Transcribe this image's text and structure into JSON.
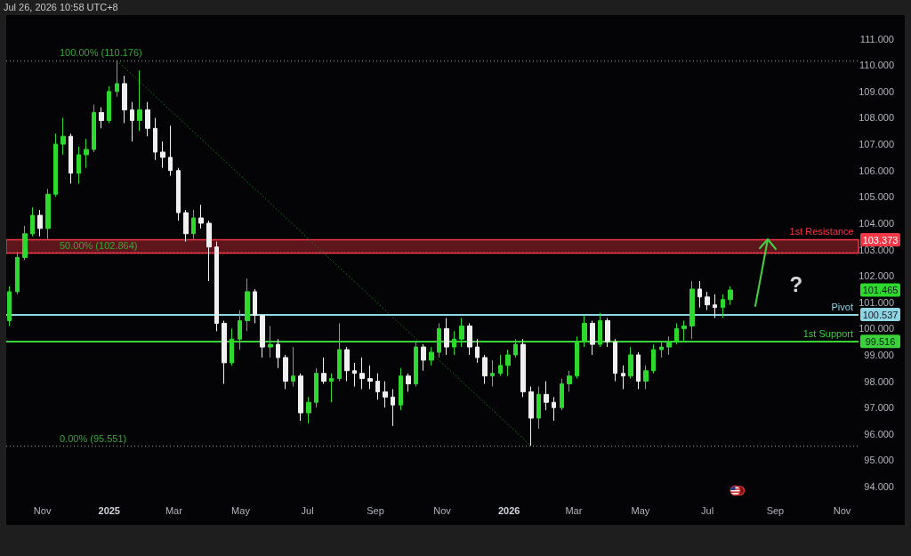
{
  "chart_data": {
    "type": "candlestick",
    "annotations": [
      "Jul 26, 2026 10:58 UTC+8",
      {
        "text": "?",
        "x": "2026-08-25",
        "y": 103.373
      },
      "103.373",
      "101.465",
      "100.537",
      "99.516"
    ],
    "x": [
      "2024-10-02",
      "2024-10-09",
      "2024-10-16",
      "2024-10-23",
      "2024-10-30",
      "2024-11-06",
      "2024-11-13",
      "2024-11-20",
      "2024-11-27",
      "2024-12-04",
      "2024-12-11",
      "2024-12-18",
      "2024-12-25",
      "2025-01-01",
      "2025-01-08",
      "2025-01-15",
      "2025-01-22",
      "2025-01-29",
      "2025-02-05",
      "2025-02-12",
      "2025-02-19",
      "2025-02-26",
      "2025-03-05",
      "2025-03-12",
      "2025-03-19",
      "2025-03-26",
      "2025-04-02",
      "2025-04-09",
      "2025-04-16",
      "2025-04-23",
      "2025-04-30",
      "2025-05-07",
      "2025-05-14",
      "2025-05-21",
      "2025-05-28",
      "2025-06-04",
      "2025-06-11",
      "2025-06-18",
      "2025-06-25",
      "2025-07-02",
      "2025-07-09",
      "2025-07-16",
      "2025-07-23",
      "2025-07-30",
      "2025-08-06",
      "2025-08-13",
      "2025-08-20",
      "2025-08-27",
      "2025-09-03",
      "2025-09-10",
      "2025-09-17",
      "2025-09-24",
      "2025-10-01",
      "2025-10-08",
      "2025-10-15",
      "2025-10-22",
      "2025-10-29",
      "2025-11-05",
      "2025-11-12",
      "2025-11-19",
      "2025-11-26",
      "2025-12-03",
      "2025-12-10",
      "2025-12-17",
      "2025-12-24",
      "2025-12-31",
      "2026-01-07",
      "2026-01-14",
      "2026-01-21",
      "2026-01-28",
      "2026-02-04",
      "2026-02-11",
      "2026-02-18",
      "2026-02-25",
      "2026-03-04",
      "2026-03-11",
      "2026-03-18",
      "2026-03-25",
      "2026-04-01",
      "2026-04-08",
      "2026-04-15",
      "2026-04-22",
      "2026-04-29",
      "2026-05-06",
      "2026-05-13",
      "2026-05-20",
      "2026-05-27",
      "2026-06-03",
      "2026-06-10",
      "2026-06-17",
      "2026-06-24",
      "2026-07-01",
      "2026-07-08",
      "2026-07-15",
      "2026-07-22"
    ],
    "ohlc": [
      [
        100.3,
        101.6,
        100.1,
        101.4
      ],
      [
        101.4,
        102.9,
        101.3,
        102.7
      ],
      [
        102.7,
        103.9,
        102.6,
        103.6
      ],
      [
        103.6,
        104.6,
        103.5,
        104.3
      ],
      [
        104.3,
        104.5,
        103.5,
        103.8
      ],
      [
        103.8,
        105.3,
        103.4,
        105.1
      ],
      [
        105.1,
        107.4,
        105.0,
        107.0
      ],
      [
        107.0,
        108.0,
        106.6,
        107.3
      ],
      [
        107.3,
        107.4,
        105.5,
        105.9
      ],
      [
        105.9,
        106.9,
        105.5,
        106.6
      ],
      [
        106.6,
        107.2,
        106.1,
        106.8
      ],
      [
        106.8,
        108.5,
        106.7,
        108.2
      ],
      [
        108.2,
        108.4,
        107.6,
        107.9
      ],
      [
        107.9,
        109.2,
        107.8,
        109.0
      ],
      [
        109.0,
        110.176,
        108.8,
        109.3
      ],
      [
        109.3,
        109.6,
        107.8,
        108.3
      ],
      [
        108.3,
        108.6,
        107.1,
        107.9
      ],
      [
        107.9,
        109.8,
        107.5,
        108.3
      ],
      [
        108.3,
        108.6,
        107.3,
        107.6
      ],
      [
        107.6,
        108.0,
        106.4,
        106.7
      ],
      [
        106.7,
        107.1,
        106.1,
        106.5
      ],
      [
        106.5,
        107.7,
        105.8,
        106.0
      ],
      [
        106.0,
        106.1,
        104.1,
        104.4
      ],
      [
        104.4,
        104.5,
        103.3,
        103.6
      ],
      [
        103.6,
        104.5,
        103.4,
        104.2
      ],
      [
        104.2,
        104.7,
        103.8,
        104.0
      ],
      [
        104.0,
        104.1,
        101.8,
        103.1
      ],
      [
        103.1,
        103.3,
        99.9,
        100.2
      ],
      [
        100.2,
        100.3,
        97.9,
        98.7
      ],
      [
        98.7,
        100.0,
        98.6,
        99.6
      ],
      [
        99.6,
        100.7,
        99.2,
        100.3
      ],
      [
        100.3,
        101.9,
        99.9,
        101.4
      ],
      [
        101.4,
        101.5,
        100.2,
        100.5
      ],
      [
        100.5,
        100.5,
        98.9,
        99.3
      ],
      [
        99.3,
        100.1,
        98.9,
        99.4
      ],
      [
        99.4,
        99.6,
        98.5,
        98.9
      ],
      [
        98.9,
        99.0,
        97.7,
        98.0
      ],
      [
        98.0,
        99.3,
        97.8,
        98.2
      ],
      [
        98.2,
        98.3,
        96.5,
        96.8
      ],
      [
        96.8,
        97.4,
        96.4,
        97.2
      ],
      [
        97.2,
        98.5,
        97.0,
        98.3
      ],
      [
        98.3,
        98.9,
        97.9,
        98.0
      ],
      [
        98.0,
        98.3,
        97.2,
        98.1
      ],
      [
        98.1,
        100.2,
        98.0,
        99.2
      ],
      [
        99.2,
        99.3,
        98.0,
        98.4
      ],
      [
        98.4,
        98.7,
        97.8,
        98.3
      ],
      [
        98.3,
        98.9,
        97.7,
        98.1
      ],
      [
        98.1,
        98.6,
        97.7,
        98.0
      ],
      [
        98.0,
        98.3,
        97.3,
        97.6
      ],
      [
        97.6,
        98.0,
        97.0,
        97.4
      ],
      [
        97.4,
        97.7,
        96.3,
        97.1
      ],
      [
        97.1,
        98.5,
        96.9,
        98.2
      ],
      [
        98.2,
        98.3,
        97.6,
        97.9
      ],
      [
        97.9,
        99.5,
        97.8,
        99.3
      ],
      [
        99.3,
        99.4,
        98.4,
        98.8
      ],
      [
        98.8,
        99.3,
        98.6,
        99.1
      ],
      [
        99.1,
        100.2,
        98.9,
        100.0
      ],
      [
        100.0,
        100.4,
        99.0,
        99.3
      ],
      [
        99.3,
        99.9,
        99.0,
        99.6
      ],
      [
        99.6,
        100.4,
        99.3,
        100.1
      ],
      [
        100.1,
        100.2,
        99.0,
        99.3
      ],
      [
        99.3,
        99.6,
        98.7,
        98.9
      ],
      [
        98.9,
        99.0,
        97.9,
        98.2
      ],
      [
        98.2,
        98.8,
        97.8,
        98.3
      ],
      [
        98.3,
        99.0,
        98.2,
        98.6
      ],
      [
        98.6,
        99.2,
        98.2,
        99.0
      ],
      [
        99.0,
        99.6,
        98.9,
        99.4
      ],
      [
        99.4,
        99.6,
        97.4,
        97.6
      ],
      [
        97.6,
        97.8,
        95.551,
        96.6
      ],
      [
        96.6,
        97.8,
        96.2,
        97.5
      ],
      [
        97.5,
        98.0,
        96.9,
        97.2
      ],
      [
        97.2,
        97.4,
        96.5,
        97.0
      ],
      [
        97.0,
        98.1,
        96.9,
        97.9
      ],
      [
        97.9,
        98.4,
        97.6,
        98.2
      ],
      [
        98.2,
        99.7,
        98.1,
        99.5
      ],
      [
        99.5,
        100.5,
        99.3,
        100.2
      ],
      [
        100.2,
        100.3,
        99.0,
        99.4
      ],
      [
        99.4,
        100.6,
        99.3,
        100.3
      ],
      [
        100.3,
        100.4,
        99.3,
        99.5
      ],
      [
        99.5,
        99.6,
        98.0,
        98.3
      ],
      [
        98.3,
        98.6,
        97.7,
        98.2
      ],
      [
        98.2,
        99.3,
        98.1,
        99.0
      ],
      [
        99.0,
        99.1,
        97.7,
        98.0
      ],
      [
        98.0,
        98.6,
        97.7,
        98.4
      ],
      [
        98.4,
        99.4,
        98.3,
        99.2
      ],
      [
        99.2,
        99.5,
        98.9,
        99.3
      ],
      [
        99.3,
        99.7,
        99.0,
        99.5
      ],
      [
        99.5,
        100.2,
        99.4,
        100.0
      ],
      [
        100.0,
        100.3,
        99.5,
        100.1
      ],
      [
        100.1,
        101.8,
        99.6,
        101.5
      ],
      [
        101.5,
        101.8,
        100.8,
        101.2
      ],
      [
        101.2,
        101.4,
        100.7,
        100.9
      ],
      [
        100.9,
        101.3,
        100.4,
        100.8
      ],
      [
        100.8,
        101.3,
        100.4,
        101.1
      ],
      [
        101.1,
        101.6,
        100.9,
        101.465
      ]
    ],
    "colors": [
      "#2ed92e",
      "#2ed92e",
      "#2ed92e",
      "#2ed92e",
      "#f0f0f0",
      "#2ed92e",
      "#2ed92e",
      "#2ed92e",
      "#f0f0f0",
      "#2ed92e",
      "#2ed92e",
      "#2ed92e",
      "#f0f0f0",
      "#2ed92e",
      "#2ed92e",
      "#f0f0f0",
      "#f0f0f0",
      "#2ed92e",
      "#f0f0f0",
      "#f0f0f0",
      "#f0f0f0",
      "#f0f0f0",
      "#f0f0f0",
      "#f0f0f0",
      "#2ed92e",
      "#f0f0f0",
      "#f0f0f0",
      "#f0f0f0",
      "#f0f0f0",
      "#2ed92e",
      "#2ed92e",
      "#2ed92e",
      "#f0f0f0",
      "#f0f0f0",
      "#2ed92e",
      "#f0f0f0",
      "#f0f0f0",
      "#2ed92e",
      "#f0f0f0",
      "#2ed92e",
      "#2ed92e",
      "#f0f0f0",
      "#2ed92e",
      "#2ed92e",
      "#f0f0f0",
      "#f0f0f0",
      "#f0f0f0",
      "#f0f0f0",
      "#f0f0f0",
      "#f0f0f0",
      "#f0f0f0",
      "#2ed92e",
      "#f0f0f0",
      "#2ed92e",
      "#f0f0f0",
      "#2ed92e",
      "#2ed92e",
      "#f0f0f0",
      "#2ed92e",
      "#2ed92e",
      "#f0f0f0",
      "#f0f0f0",
      "#f0f0f0",
      "#2ed92e",
      "#2ed92e",
      "#2ed92e",
      "#2ed92e",
      "#f0f0f0",
      "#f0f0f0",
      "#2ed92e",
      "#f0f0f0",
      "#f0f0f0",
      "#2ed92e",
      "#2ed92e",
      "#2ed92e",
      "#2ed92e",
      "#f0f0f0",
      "#2ed92e",
      "#f0f0f0",
      "#f0f0f0",
      "#f0f0f0",
      "#2ed92e",
      "#f0f0f0",
      "#2ed92e",
      "#2ed92e",
      "#2ed92e",
      "#2ed92e",
      "#2ed92e",
      "#2ed92e",
      "#2ed92e",
      "#f0f0f0",
      "#f0f0f0",
      "#f0f0f0",
      "#2ed92e",
      "#2ed92e"
    ],
    "series": [
      {
        "type": "line",
        "x": [
          "2025-01-08",
          "2026-01-21"
        ],
        "values": [
          110.176,
          95.551
        ],
        "color": "#1f6e1f",
        "line_style": "dotted"
      }
    ],
    "xlim": [
      "2024-09-29",
      "2026-11-16"
    ],
    "xticks": [
      {
        "value": "2024-11-01",
        "label": "Nov"
      },
      {
        "value": "2025-01-01",
        "label": "2025"
      },
      {
        "value": "2025-03-01",
        "label": "Mar"
      },
      {
        "value": "2025-05-01",
        "label": "May"
      },
      {
        "value": "2025-07-01",
        "label": "Jul"
      },
      {
        "value": "2025-09-01",
        "label": "Sep"
      },
      {
        "value": "2025-11-01",
        "label": "Nov"
      },
      {
        "value": "2026-01-01",
        "label": "2026"
      },
      {
        "value": "2026-03-01",
        "label": "Mar"
      },
      {
        "value": "2026-05-01",
        "label": "May"
      },
      {
        "value": "2026-07-01",
        "label": "Jul"
      },
      {
        "value": "2026-09-01",
        "label": "Sep"
      },
      {
        "value": "2026-11-01",
        "label": "Nov"
      }
    ],
    "ylim": [
      94,
      111.9
    ],
    "yticks": [
      {
        "value": 94,
        "label": "94.000"
      },
      {
        "value": 95,
        "label": "95.000"
      },
      {
        "value": 96,
        "label": "96.000"
      },
      {
        "value": 97,
        "label": "97.000"
      },
      {
        "value": 98,
        "label": "98.000"
      },
      {
        "value": 99,
        "label": "99.000"
      },
      {
        "value": 100,
        "label": "100.000"
      },
      {
        "value": 101,
        "label": "101.000"
      },
      {
        "value": 102,
        "label": "102.000"
      },
      {
        "value": 103,
        "label": "103.000"
      },
      {
        "value": 104,
        "label": "104.000"
      },
      {
        "value": 105,
        "label": "105.000"
      },
      {
        "value": 106,
        "label": "106.000"
      },
      {
        "value": 107,
        "label": "107.000"
      },
      {
        "value": 108,
        "label": "108.000"
      },
      {
        "value": 109,
        "label": "109.000"
      },
      {
        "value": 110,
        "label": "110.000"
      },
      {
        "value": 111,
        "label": "111.000"
      }
    ],
    "ref_lines": [
      {
        "axis": "y",
        "value": 110.176,
        "label": "100.00% (110.176)",
        "color": "#35a835",
        "line_style": "dotted"
      },
      {
        "axis": "y",
        "value": 102.864,
        "label": "50.00% (102.864)",
        "color": "#35a835",
        "line_style": "dotted"
      },
      {
        "axis": "y",
        "value": 95.551,
        "label": "0.00% (95.551)",
        "color": "#35a835",
        "line_style": "dotted"
      },
      {
        "axis": "y",
        "value": 100.537,
        "label": "Pivot",
        "color": "#8fd6e4",
        "line_style": "solid"
      },
      {
        "axis": "y",
        "value": 99.516,
        "label": "1st Support",
        "color": "#3ad13a",
        "line_style": "solid"
      }
    ],
    "bands": [
      {
        "axis": "y",
        "from": 102.864,
        "to": 103.373,
        "label": "1st Resistance",
        "color": "#f23645"
      }
    ]
  }
}
